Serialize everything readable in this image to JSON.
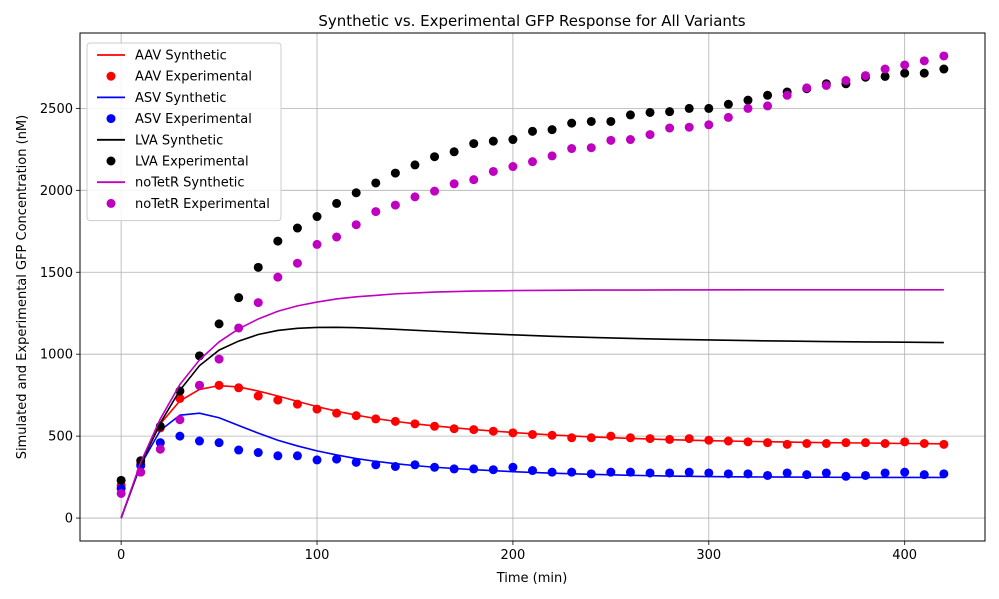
{
  "chart_data": {
    "type": "line",
    "title": "Synthetic vs. Experimental GFP Response for All Variants",
    "xlabel": "Time (min)",
    "ylabel": "Simulated and Experimental GFP Concentration (nM)",
    "xlim": [
      -21,
      441
    ],
    "ylim": [
      -140,
      2960
    ],
    "xticks": [
      0,
      100,
      200,
      300,
      400
    ],
    "yticks": [
      0,
      500,
      1000,
      1500,
      2000,
      2500
    ],
    "grid": true,
    "legend_position": "top-left",
    "series": [
      {
        "name": "AAV Synthetic",
        "kind": "line",
        "color": "#ff0000",
        "x": [
          0,
          10,
          20,
          30,
          40,
          50,
          60,
          70,
          80,
          90,
          100,
          110,
          120,
          130,
          140,
          150,
          160,
          180,
          200,
          220,
          240,
          260,
          280,
          300,
          320,
          340,
          360,
          380,
          400,
          420
        ],
        "y": [
          0,
          330,
          575,
          715,
          785,
          808,
          800,
          775,
          745,
          712,
          680,
          652,
          628,
          607,
          590,
          575,
          562,
          540,
          522,
          507,
          495,
          486,
          478,
          472,
          468,
          464,
          460,
          458,
          455,
          453
        ]
      },
      {
        "name": "AAV Experimental",
        "kind": "points",
        "color": "#ff0000",
        "x": [
          0,
          10,
          20,
          30,
          40,
          50,
          60,
          70,
          80,
          90,
          100,
          110,
          120,
          130,
          140,
          150,
          160,
          170,
          180,
          190,
          200,
          210,
          220,
          230,
          240,
          250,
          260,
          270,
          280,
          290,
          300,
          310,
          320,
          330,
          340,
          350,
          360,
          370,
          380,
          390,
          400,
          410,
          420
        ],
        "y": [
          200,
          330,
          550,
          730,
          810,
          810,
          795,
          745,
          720,
          695,
          665,
          640,
          625,
          605,
          590,
          575,
          560,
          545,
          540,
          530,
          520,
          510,
          505,
          490,
          490,
          500,
          490,
          485,
          480,
          485,
          475,
          470,
          465,
          460,
          450,
          455,
          455,
          460,
          460,
          455,
          465,
          455,
          450
        ]
      },
      {
        "name": "ASV Synthetic",
        "kind": "line",
        "color": "#0000ff",
        "x": [
          0,
          10,
          20,
          30,
          40,
          50,
          60,
          70,
          80,
          90,
          100,
          110,
          120,
          130,
          140,
          150,
          160,
          180,
          200,
          220,
          240,
          260,
          280,
          300,
          320,
          340,
          360,
          380,
          400,
          420
        ],
        "y": [
          0,
          325,
          535,
          628,
          640,
          612,
          565,
          518,
          475,
          440,
          410,
          385,
          363,
          346,
          332,
          320,
          310,
          295,
          283,
          274,
          267,
          261,
          256,
          253,
          251,
          250,
          249,
          248,
          248,
          248
        ]
      },
      {
        "name": "ASV Experimental",
        "kind": "points",
        "color": "#0000ff",
        "x": [
          0,
          10,
          20,
          30,
          40,
          50,
          60,
          70,
          80,
          90,
          100,
          110,
          120,
          130,
          140,
          150,
          160,
          170,
          180,
          190,
          200,
          210,
          220,
          230,
          240,
          250,
          260,
          270,
          280,
          290,
          300,
          310,
          320,
          330,
          340,
          350,
          360,
          370,
          380,
          390,
          400,
          410,
          420
        ],
        "y": [
          180,
          320,
          460,
          500,
          470,
          460,
          415,
          400,
          380,
          380,
          355,
          360,
          340,
          325,
          315,
          325,
          310,
          300,
          300,
          295,
          310,
          290,
          280,
          280,
          270,
          280,
          280,
          275,
          275,
          280,
          275,
          270,
          270,
          260,
          275,
          265,
          275,
          255,
          260,
          275,
          280,
          265,
          270
        ]
      },
      {
        "name": "LVA Synthetic",
        "kind": "line",
        "color": "#000000",
        "x": [
          0,
          10,
          20,
          30,
          40,
          50,
          60,
          70,
          80,
          90,
          100,
          110,
          120,
          140,
          160,
          180,
          200,
          220,
          240,
          260,
          280,
          300,
          320,
          340,
          360,
          380,
          400,
          420
        ],
        "y": [
          0,
          330,
          580,
          780,
          930,
          1025,
          1080,
          1120,
          1145,
          1158,
          1163,
          1164,
          1162,
          1152,
          1140,
          1128,
          1118,
          1109,
          1102,
          1096,
          1091,
          1087,
          1083,
          1080,
          1077,
          1075,
          1073,
          1071
        ]
      },
      {
        "name": "LVA Experimental",
        "kind": "points",
        "color": "#000000",
        "x": [
          0,
          10,
          20,
          30,
          40,
          50,
          60,
          70,
          80,
          90,
          100,
          110,
          120,
          130,
          140,
          150,
          160,
          170,
          180,
          190,
          200,
          210,
          220,
          230,
          240,
          250,
          260,
          270,
          280,
          290,
          300,
          310,
          320,
          330,
          340,
          350,
          360,
          370,
          380,
          390,
          400,
          410,
          420
        ],
        "y": [
          230,
          350,
          560,
          775,
          990,
          1185,
          1345,
          1530,
          1690,
          1770,
          1840,
          1920,
          1985,
          2045,
          2105,
          2155,
          2205,
          2235,
          2285,
          2300,
          2310,
          2360,
          2370,
          2410,
          2420,
          2420,
          2460,
          2475,
          2480,
          2500,
          2500,
          2525,
          2550,
          2580,
          2600,
          2620,
          2650,
          2650,
          2690,
          2695,
          2715,
          2715,
          2740
        ]
      },
      {
        "name": "noTetR Synthetic",
        "kind": "line",
        "color": "#c000c0",
        "x": [
          0,
          10,
          20,
          30,
          40,
          50,
          60,
          70,
          80,
          90,
          100,
          110,
          120,
          140,
          160,
          180,
          200,
          240,
          280,
          320,
          360,
          400,
          420
        ],
        "y": [
          0,
          340,
          605,
          815,
          965,
          1075,
          1155,
          1215,
          1262,
          1295,
          1318,
          1337,
          1350,
          1368,
          1379,
          1385,
          1388,
          1391,
          1392,
          1393,
          1393,
          1393,
          1393
        ]
      },
      {
        "name": "noTetR Experimental",
        "kind": "points",
        "color": "#c000c0",
        "x": [
          0,
          10,
          20,
          30,
          40,
          50,
          60,
          70,
          80,
          90,
          100,
          110,
          120,
          130,
          140,
          150,
          160,
          170,
          180,
          190,
          200,
          210,
          220,
          230,
          240,
          250,
          260,
          270,
          280,
          290,
          300,
          310,
          320,
          330,
          340,
          350,
          360,
          370,
          380,
          390,
          400,
          410,
          420
        ],
        "y": [
          150,
          280,
          420,
          600,
          810,
          970,
          1160,
          1315,
          1470,
          1555,
          1670,
          1715,
          1790,
          1870,
          1910,
          1960,
          1995,
          2040,
          2065,
          2115,
          2145,
          2175,
          2210,
          2255,
          2260,
          2305,
          2310,
          2340,
          2380,
          2385,
          2400,
          2445,
          2500,
          2515,
          2580,
          2625,
          2640,
          2670,
          2700,
          2740,
          2765,
          2790,
          2820
        ]
      }
    ]
  }
}
